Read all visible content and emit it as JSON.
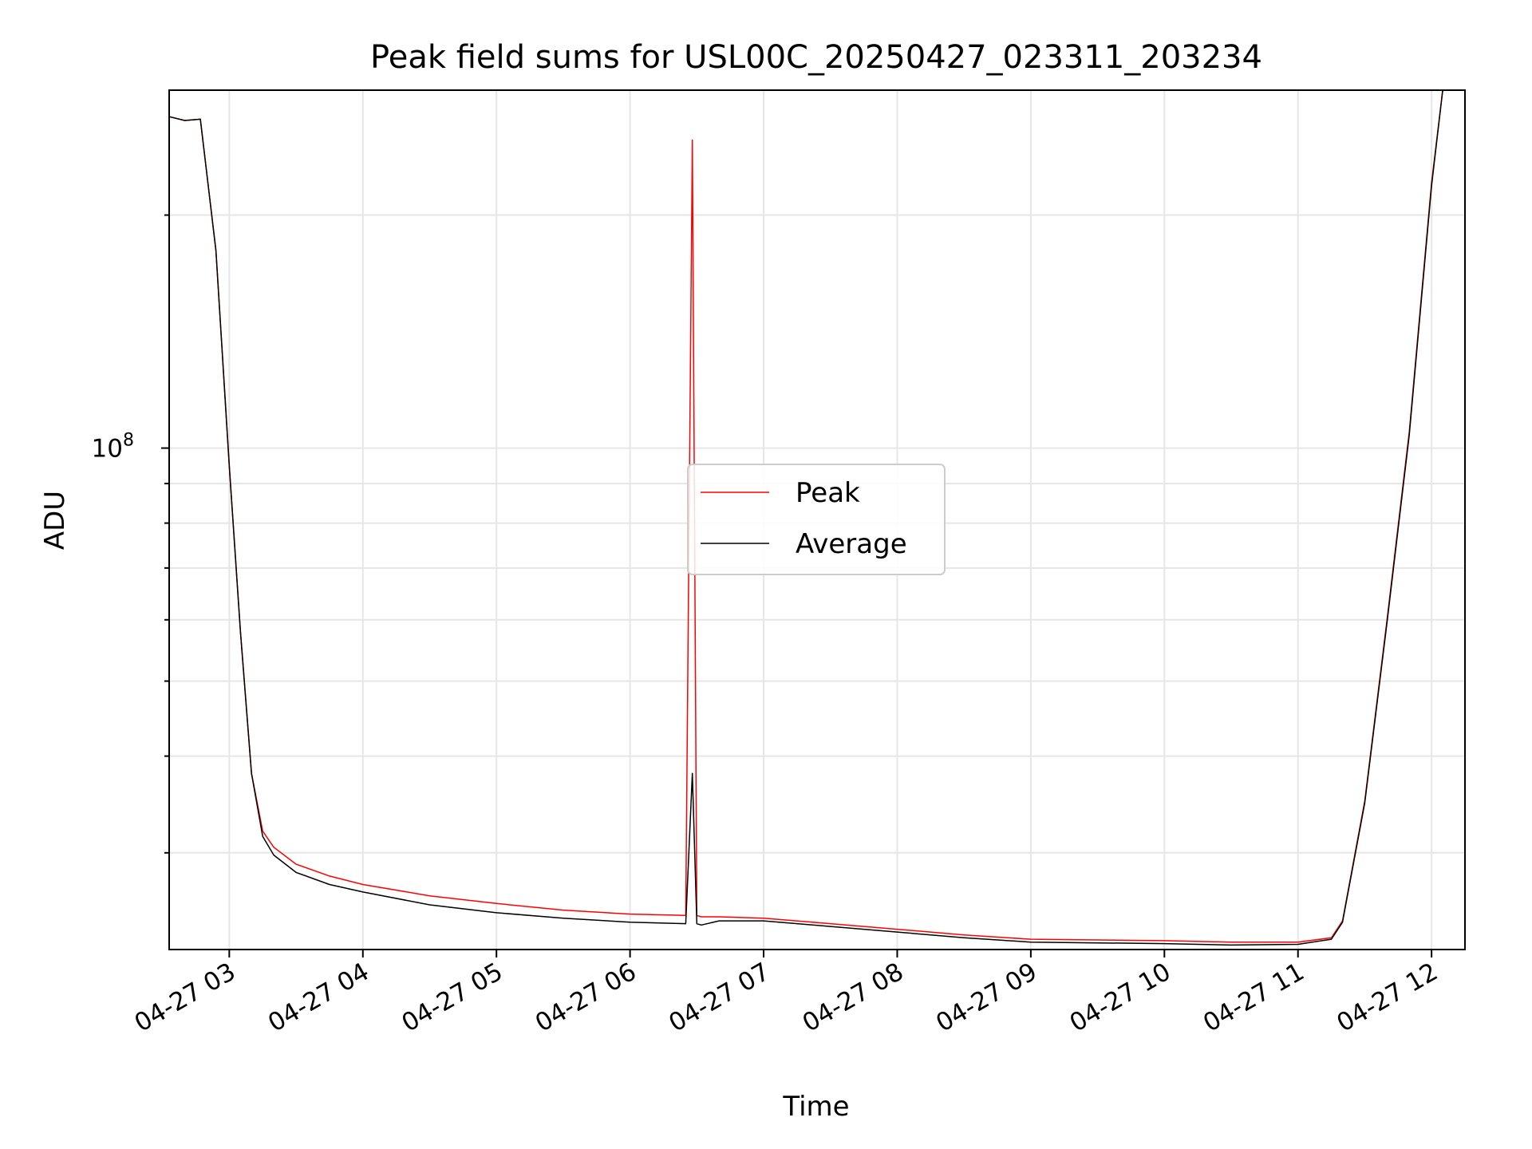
{
  "chart_data": {
    "type": "line",
    "title": "Peak field sums for USL00C_20250427_023311_203234",
    "xlabel": "Time",
    "ylabel": "ADU",
    "x_ticks": [
      "04-27 03",
      "04-27 04",
      "04-27 05",
      "04-27 06",
      "04-27 07",
      "04-27 08",
      "04-27 09",
      "04-27 10",
      "04-27 11",
      "04-27 12"
    ],
    "y_ticks": [
      {
        "base": "10",
        "exp": "8",
        "value": 100000000
      }
    ],
    "xlim": [
      "04-27 02:33",
      "04-27 12:15"
    ],
    "ylim": [
      22500000,
      290000000
    ],
    "y_scale": "log",
    "grid": true,
    "legend": {
      "position": "center",
      "entries": [
        "Peak",
        "Average"
      ]
    },
    "colors": {
      "Peak": "#ff0000",
      "Average": "#000000"
    },
    "series": [
      {
        "name": "Peak",
        "x": [
          "02:33",
          "02:40",
          "02:47",
          "02:54",
          "03:00",
          "03:05",
          "03:10",
          "03:15",
          "03:20",
          "03:30",
          "03:45",
          "04:00",
          "04:30",
          "05:00",
          "05:30",
          "06:00",
          "06:25",
          "06:28",
          "06:30",
          "06:32",
          "06:40",
          "07:00",
          "07:30",
          "08:00",
          "08:30",
          "09:00",
          "09:30",
          "10:00",
          "10:30",
          "11:00",
          "11:15",
          "11:20",
          "11:30",
          "11:40",
          "11:50",
          "12:00",
          "12:05",
          "12:15"
        ],
        "values": [
          268000000,
          265000000,
          266000000,
          180000000,
          95000000,
          58000000,
          38000000,
          32000000,
          30500000,
          29000000,
          28000000,
          27300000,
          26400000,
          25800000,
          25300000,
          25000000,
          24900000,
          250000000,
          24900000,
          24800000,
          24800000,
          24700000,
          24300000,
          23900000,
          23500000,
          23200000,
          23150000,
          23100000,
          23000000,
          23000000,
          23300000,
          24500000,
          35000000,
          60000000,
          105000000,
          220000000,
          290000000,
          290000000
        ]
      },
      {
        "name": "Average",
        "x": [
          "02:33",
          "02:40",
          "02:47",
          "02:54",
          "03:00",
          "03:05",
          "03:10",
          "03:15",
          "03:20",
          "03:30",
          "03:45",
          "04:00",
          "04:30",
          "05:00",
          "05:30",
          "06:00",
          "06:25",
          "06:28",
          "06:30",
          "06:32",
          "06:40",
          "07:00",
          "07:30",
          "08:00",
          "08:30",
          "09:00",
          "09:30",
          "10:00",
          "10:30",
          "11:00",
          "11:15",
          "11:20",
          "11:30",
          "11:40",
          "11:50",
          "12:00",
          "12:05",
          "12:15"
        ],
        "values": [
          268000000,
          265000000,
          266000000,
          180000000,
          95000000,
          58000000,
          38000000,
          31500000,
          29800000,
          28300000,
          27300000,
          26700000,
          25700000,
          25100000,
          24700000,
          24400000,
          24300000,
          38000000,
          24300000,
          24200000,
          24500000,
          24500000,
          24100000,
          23700000,
          23300000,
          23000000,
          22950000,
          22900000,
          22800000,
          22850000,
          23200000,
          24400000,
          34800000,
          59500000,
          104000000,
          218000000,
          290000000,
          290000000
        ]
      }
    ]
  }
}
